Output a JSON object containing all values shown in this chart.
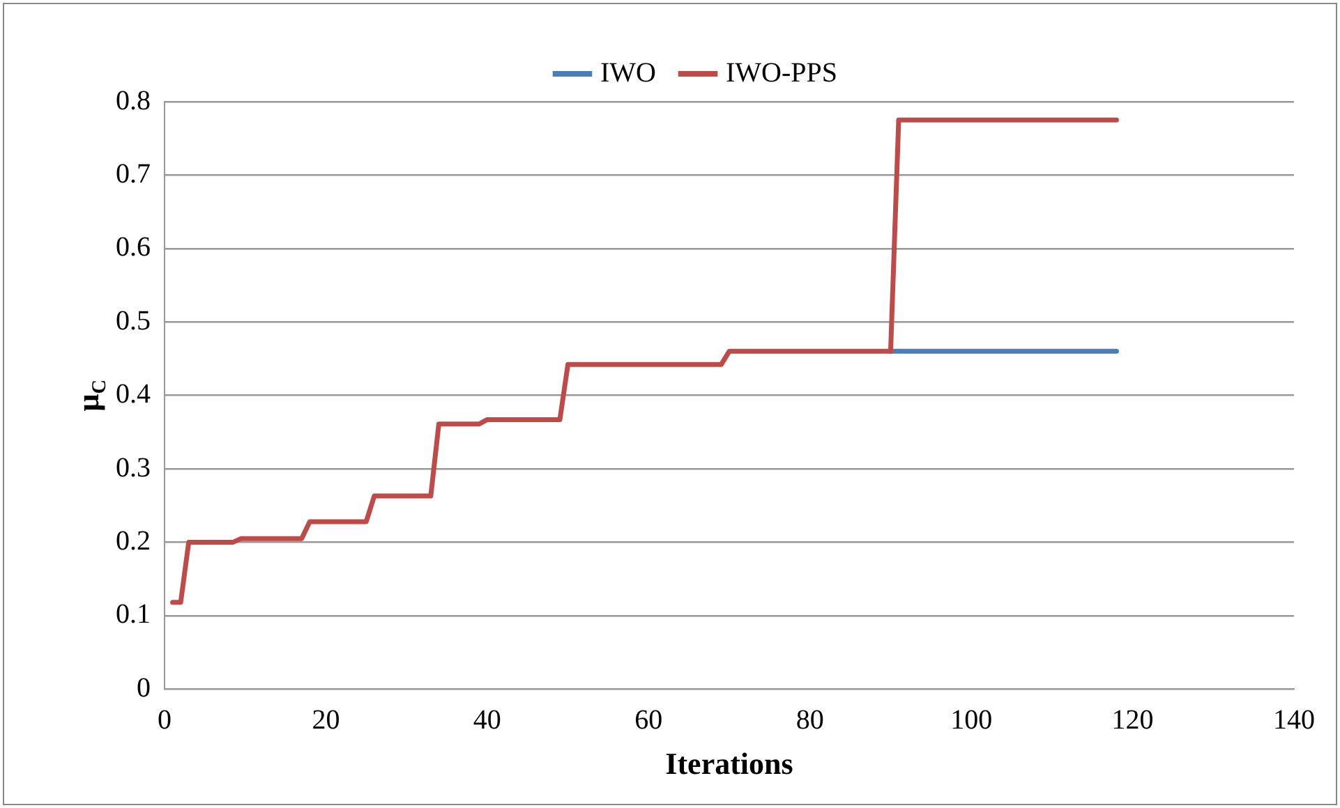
{
  "chart_data": {
    "type": "line",
    "xlabel": "Iterations",
    "ylabel": "μ$_{C}$",
    "xlim": [
      0,
      140
    ],
    "xticks": [
      0,
      20,
      40,
      60,
      80,
      100,
      120,
      140
    ],
    "ylim": [
      0,
      0.8
    ],
    "yticks": [
      0,
      0.1,
      0.2,
      0.3,
      0.4,
      0.5,
      0.6,
      0.7,
      0.8
    ],
    "grid": "y",
    "legend": "top",
    "marker": "none",
    "line_style": "solid",
    "series": [
      {
        "name": "IWO",
        "color": "#4a7ebb",
        "x": [
          90,
          118
        ],
        "values": [
          0.46,
          0.46
        ]
      },
      {
        "name": "IWO-PPS",
        "color": "#be4b48",
        "x": [
          1,
          2,
          3,
          8.5,
          9.5,
          17,
          18,
          25,
          26,
          33,
          34,
          39,
          40,
          49,
          50,
          69,
          70,
          90,
          91,
          118
        ],
        "values": [
          0.118,
          0.118,
          0.2,
          0.2,
          0.205,
          0.205,
          0.228,
          0.228,
          0.263,
          0.263,
          0.361,
          0.361,
          0.367,
          0.367,
          0.442,
          0.442,
          0.46,
          0.46,
          0.775,
          0.775
        ]
      }
    ]
  }
}
